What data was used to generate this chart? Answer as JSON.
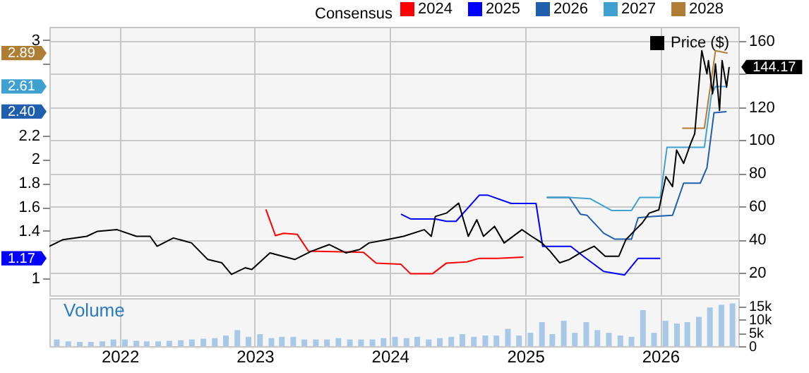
{
  "chart_data": [
    {
      "type": "line",
      "legend": "top",
      "legend_title": "Consensus",
      "grid": true,
      "tick_labels": "y",
      "xlim": [
        "2021-06-25",
        "2026-07-31"
      ],
      "xticks": [
        "2022",
        "2023",
        "2024",
        "2025",
        "2026"
      ],
      "ylim": [
        0.86,
        3.11
      ],
      "yticks": [
        1,
        1.4,
        1.6,
        1.8,
        2,
        2.2,
        {
          "value": 2.8,
          "label": null
        },
        3
      ],
      "annotations": [
        {
          "text": "2.89",
          "y": 2.89
        },
        {
          "text": "2.61",
          "y": 2.61
        },
        {
          "text": "2.40",
          "y": 2.4
        },
        {
          "text": "1.17",
          "y": 1.17
        }
      ],
      "y2lim": [
        6.4,
        168.4
      ],
      "y2ticks": [
        20,
        40,
        60,
        80,
        100,
        120,
        {
          "value": 140,
          "label": null
        },
        160
      ],
      "series": [
        {
          "name": "2024",
          "color": "#ff0000",
          "x": [
            "2023-01-31",
            "2023-02-26",
            "2023-03-20",
            "2023-04-26",
            "2023-05-26",
            "2023-10-22",
            "2023-11-25",
            "2024-01-31",
            "2024-02-26",
            "2024-04-25",
            "2024-06-02",
            "2024-07-27",
            "2024-08-30",
            "2024-10-17",
            "2024-12-27"
          ],
          "values": [
            1.58,
            1.36,
            1.38,
            1.37,
            1.23,
            1.22,
            1.13,
            1.12,
            1.04,
            1.04,
            1.13,
            1.14,
            1.17,
            1.17,
            1.18
          ]
        },
        {
          "name": "2025",
          "color": "#0000ff",
          "x": [
            "2024-01-31",
            "2024-02-26",
            "2024-05-03",
            "2024-06-02",
            "2024-06-28",
            "2024-08-30",
            "2024-09-21",
            "2024-11-24",
            "2025-01-30",
            "2025-02-17",
            "2025-05-04",
            "2025-06-10",
            "2025-08-01",
            "2025-09-26",
            "2025-11-02",
            "2026-01-01"
          ],
          "values": [
            1.54,
            1.5,
            1.5,
            1.48,
            1.48,
            1.7,
            1.7,
            1.63,
            1.63,
            1.27,
            1.27,
            1.18,
            1.06,
            1.03,
            1.17,
            1.17
          ]
        },
        {
          "name": "2026",
          "color": "#1f5fae",
          "x": [
            "2025-02-28",
            "2025-04-30",
            "2025-05-30",
            "2025-06-17",
            "2025-08-01",
            "2025-08-31",
            "2025-10-15",
            "2025-11-02",
            "2025-12-09",
            "2026-02-03",
            "2026-03-05",
            "2026-04-19",
            "2026-05-07",
            "2026-05-26",
            "2026-06-29"
          ],
          "values": [
            1.68,
            1.68,
            1.54,
            1.53,
            1.38,
            1.33,
            1.33,
            1.51,
            1.52,
            1.53,
            1.8,
            1.8,
            1.93,
            2.39,
            2.4
          ]
        },
        {
          "name": "2027",
          "color": "#3ea1d2",
          "x": [
            "2025-02-28",
            "2025-04-30",
            "2025-06-25",
            "2025-08-23",
            "2025-10-15",
            "2025-11-06",
            "2026-01-01",
            "2026-01-19",
            "2026-04-30",
            "2026-05-19",
            "2026-05-30",
            "2026-06-29"
          ],
          "values": [
            1.68,
            1.68,
            1.67,
            1.57,
            1.57,
            1.68,
            1.68,
            2.1,
            2.1,
            2.54,
            2.61,
            2.61
          ]
        },
        {
          "name": "2028",
          "color": "#b07d35",
          "x": [
            "2026-03-01",
            "2026-04-30",
            "2026-05-30",
            "2026-07-02"
          ],
          "values": [
            2.26,
            2.26,
            2.91,
            2.89
          ]
        },
        {
          "name": "Price ($)",
          "color": "#000000",
          "axis": "y2",
          "x": [
            "2021-06-25",
            "2021-08-01",
            "2021-10-04",
            "2021-11-02",
            "2021-12-25",
            "2022-02-15",
            "2022-03-24",
            "2022-04-12",
            "2022-05-26",
            "2022-07-14",
            "2022-08-27",
            "2022-10-04",
            "2022-10-30",
            "2022-12-06",
            "2022-12-24",
            "2023-02-11",
            "2023-04-19",
            "2023-06-03",
            "2023-07-21",
            "2023-09-04",
            "2023-10-11",
            "2023-11-06",
            "2023-12-24",
            "2024-02-07",
            "2024-04-03",
            "2024-04-22",
            "2024-05-03",
            "2024-06-02",
            "2024-07-05",
            "2024-07-31",
            "2024-08-23",
            "2024-09-10",
            "2024-10-10",
            "2024-11-05",
            "2024-12-23",
            "2025-01-18",
            "2025-02-15",
            "2025-03-09",
            "2025-04-04",
            "2025-04-30",
            "2025-05-30",
            "2025-07-06",
            "2025-08-05",
            "2025-09-11",
            "2025-09-30",
            "2025-10-26",
            "2025-11-13",
            "2025-12-02",
            "2025-12-28",
            "2026-01-16",
            "2026-02-03",
            "2026-02-14",
            "2026-03-05",
            "2026-03-24",
            "2026-04-04",
            "2026-04-23",
            "2026-05-07",
            "2026-05-11",
            "2026-05-22",
            "2026-05-30",
            "2026-06-10",
            "2026-06-17",
            "2026-06-29",
            "2026-07-06"
          ],
          "values": [
            36,
            40,
            42,
            45,
            46,
            42,
            42,
            36,
            41,
            38,
            28,
            26,
            19,
            23,
            22,
            32,
            28,
            33,
            37,
            32,
            34,
            38,
            40,
            42,
            46,
            42,
            54,
            56,
            62,
            42,
            52,
            42,
            48,
            38,
            46,
            42,
            38,
            33,
            26,
            28,
            32,
            36,
            30,
            30,
            40,
            46,
            50,
            56,
            58,
            78,
            72,
            94,
            86,
            98,
            104,
            154,
            140,
            148,
            128,
            146,
            118,
            148,
            132,
            144.17
          ],
          "value_labels": [
            null,
            null,
            null,
            null,
            null,
            null,
            null,
            null,
            null,
            null,
            null,
            null,
            null,
            null,
            null,
            null,
            null,
            null,
            null,
            null,
            null,
            null,
            null,
            null,
            null,
            null,
            null,
            null,
            null,
            null,
            null,
            null,
            null,
            null,
            null,
            null,
            null,
            null,
            null,
            null,
            null,
            null,
            null,
            null,
            null,
            null,
            null,
            null,
            null,
            null,
            null,
            null,
            null,
            null,
            null,
            null,
            null,
            null,
            null,
            null,
            null,
            null,
            null,
            "144.17"
          ]
        }
      ]
    },
    {
      "type": "bar",
      "title": "Volume",
      "color": "#a8c8e8",
      "grid": "x",
      "xlim": [
        "2021-06-25",
        "2026-07-31"
      ],
      "xticks": [
        "2022",
        "2023",
        "2024",
        "2025",
        "2026"
      ],
      "ylim": [
        0,
        18000
      ],
      "yticks": [
        0,
        {
          "value": 5000,
          "label": "5k"
        },
        {
          "value": 10000,
          "label": "10k"
        },
        {
          "value": 15000,
          "label": "15k"
        }
      ],
      "x": [
        "2021-07-15",
        "2021-08-15",
        "2021-09-15",
        "2021-10-15",
        "2021-11-15",
        "2021-12-15",
        "2022-01-15",
        "2022-02-15",
        "2022-03-15",
        "2022-04-15",
        "2022-05-15",
        "2022-06-15",
        "2022-07-15",
        "2022-08-15",
        "2022-09-15",
        "2022-10-15",
        "2022-11-15",
        "2022-12-15",
        "2023-01-15",
        "2023-02-15",
        "2023-03-15",
        "2023-04-15",
        "2023-05-15",
        "2023-06-15",
        "2023-07-15",
        "2023-08-15",
        "2023-09-15",
        "2023-10-15",
        "2023-11-15",
        "2023-12-15",
        "2024-01-15",
        "2024-02-15",
        "2024-03-15",
        "2024-04-15",
        "2024-05-15",
        "2024-06-15",
        "2024-07-15",
        "2024-08-15",
        "2024-09-15",
        "2024-10-15",
        "2024-11-15",
        "2024-12-15",
        "2025-01-15",
        "2025-02-15",
        "2025-03-15",
        "2025-04-15",
        "2025-05-15",
        "2025-06-15",
        "2025-07-15",
        "2025-08-15",
        "2025-09-15",
        "2025-10-15",
        "2025-11-15",
        "2025-12-15",
        "2026-01-15",
        "2026-02-15",
        "2026-03-15",
        "2026-04-15",
        "2026-05-15",
        "2026-06-15",
        "2026-07-15"
      ],
      "values": [
        2500,
        1800,
        1600,
        1600,
        1800,
        2500,
        2500,
        2000,
        1800,
        1800,
        2000,
        2200,
        2500,
        2800,
        3000,
        4000,
        6000,
        3500,
        4500,
        3000,
        3500,
        3500,
        2500,
        2500,
        2500,
        3000,
        2500,
        2500,
        2500,
        3000,
        3500,
        3000,
        3500,
        2500,
        3000,
        3500,
        4500,
        3500,
        4000,
        4000,
        6500,
        4000,
        5000,
        9000,
        4500,
        9500,
        5000,
        9000,
        6000,
        5000,
        4000,
        3500,
        13500,
        5000,
        9500,
        8500,
        9000,
        11000,
        14500,
        15500,
        16000
      ]
    }
  ]
}
